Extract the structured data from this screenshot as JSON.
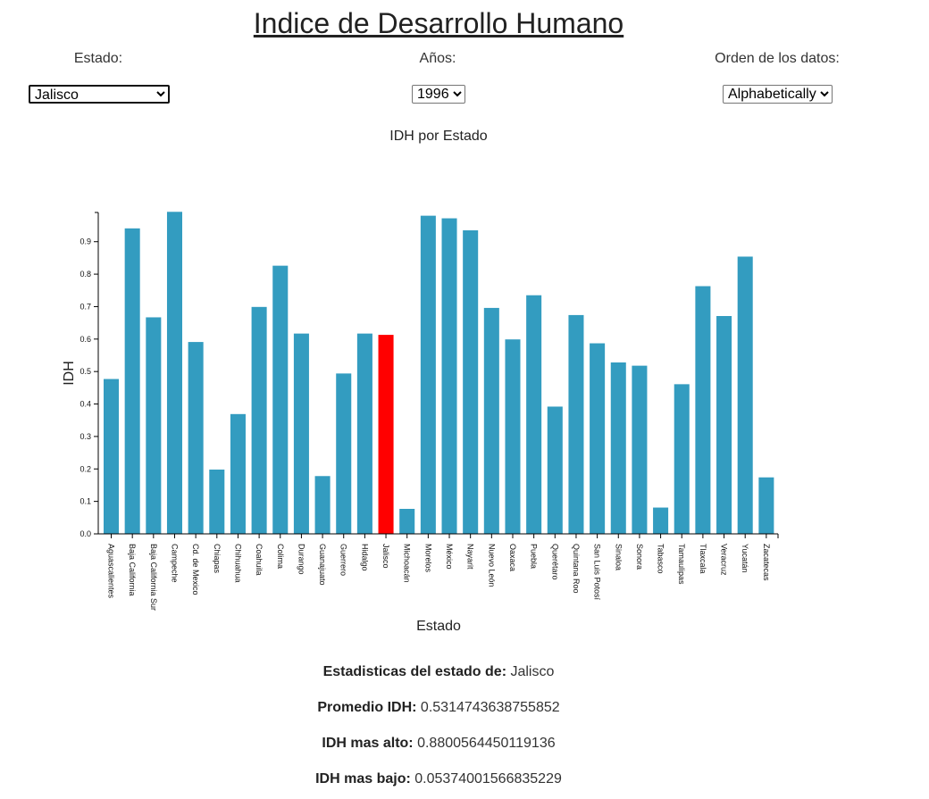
{
  "title": "Indice de Desarrollo Humano",
  "controls": {
    "estado_label": "Estado:",
    "estado_value": "Jalisco",
    "anios_label": "Años:",
    "anios_value": "1996",
    "orden_label": "Orden de los datos:",
    "orden_value": "Alphabetically"
  },
  "colors": {
    "bar": "#339cc0",
    "highlight": "#ff0000"
  },
  "chart_data": {
    "type": "bar",
    "title": "IDH por Estado",
    "xlabel": "Estado",
    "ylabel": "IDH",
    "ylim": [
      0,
      0.99
    ],
    "yticks": [
      0.0,
      0.1,
      0.2,
      0.3,
      0.4,
      0.5,
      0.6,
      0.7,
      0.8,
      0.9
    ],
    "highlight": "Jalisco",
    "categories": [
      "Aguascalientes",
      "Baja California",
      "Baja California Sur",
      "Campeche",
      "Cd. de Mexico",
      "Chiapas",
      "Chihuahua",
      "Coahuila",
      "Colima",
      "Durango",
      "Guanajuato",
      "Guerrero",
      "Hidalgo",
      "Jalisco",
      "Michoacán",
      "Morelos",
      "México",
      "Nayarit",
      "Nuevo León",
      "Oaxaca",
      "Puebla",
      "Querétaro",
      "Quintana Roo",
      "San Luis Potosí",
      "Sinaloa",
      "Sonora",
      "Tabasco",
      "Tamaulipas",
      "Tlaxcala",
      "Veracruz",
      "Yucatán",
      "Zacatecas"
    ],
    "values": [
      0.477,
      0.941,
      0.667,
      0.992,
      0.591,
      0.198,
      0.369,
      0.699,
      0.826,
      0.617,
      0.178,
      0.494,
      0.617,
      0.613,
      0.077,
      0.98,
      0.972,
      0.935,
      0.696,
      0.599,
      0.735,
      0.392,
      0.674,
      0.587,
      0.528,
      0.518,
      0.081,
      0.461,
      0.763,
      0.671,
      0.854,
      0.174
    ]
  },
  "stats": {
    "estado_label": "Estadisticas del estado de:",
    "estado_value": "Jalisco",
    "promedio_label": "Promedio IDH:",
    "promedio_value": "0.5314743638755852",
    "alto_label": "IDH mas alto:",
    "alto_value": "0.8800564450119136",
    "bajo_label": "IDH mas bajo:",
    "bajo_value": "0.05374001566835229"
  }
}
